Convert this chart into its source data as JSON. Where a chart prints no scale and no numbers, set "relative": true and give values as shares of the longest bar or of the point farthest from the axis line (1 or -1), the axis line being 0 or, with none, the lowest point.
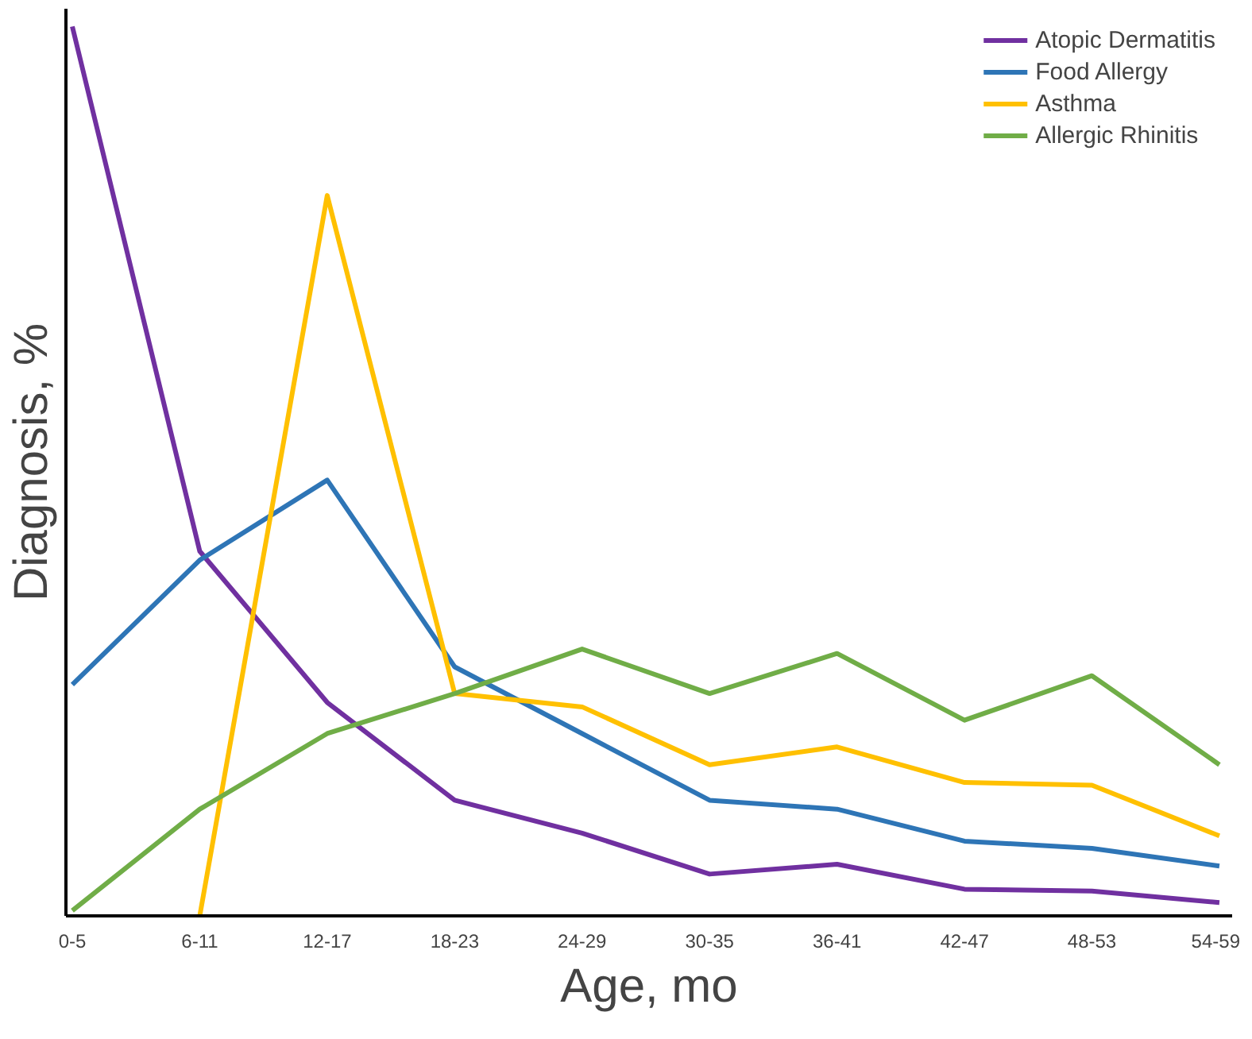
{
  "chart_data": {
    "type": "line",
    "relative": true,
    "xlabel": "Age, mo",
    "ylabel": "Diagnosis, %",
    "categories": [
      "0-5",
      "6-11",
      "12-17",
      "18-23",
      "24-29",
      "30-35",
      "36-41",
      "42-47",
      "48-53",
      "54-59"
    ],
    "series": [
      {
        "name": "Atopic Dermatitis",
        "color": "#7030a0",
        "values": [
          1.0,
          0.41,
          0.24,
          0.13,
          0.093,
          0.047,
          0.058,
          0.03,
          0.028,
          0.015
        ]
      },
      {
        "name": "Food Allergy",
        "color": "#2e75b6",
        "values": [
          0.26,
          0.4,
          0.49,
          0.28,
          0.205,
          0.13,
          0.12,
          0.084,
          0.076,
          0.056
        ]
      },
      {
        "name": "Asthma",
        "color": "#ffc000",
        "values": [
          null,
          0.0,
          0.81,
          0.25,
          0.235,
          0.17,
          0.19,
          0.15,
          0.147,
          0.09
        ]
      },
      {
        "name": "Allergic Rhinitis",
        "color": "#70ad47",
        "values": [
          0.006,
          0.12,
          0.205,
          0.25,
          0.3,
          0.25,
          0.295,
          0.22,
          0.27,
          0.17
        ]
      }
    ],
    "legend": "top right",
    "grid": false,
    "marker": "none",
    "line_style": "solid"
  }
}
